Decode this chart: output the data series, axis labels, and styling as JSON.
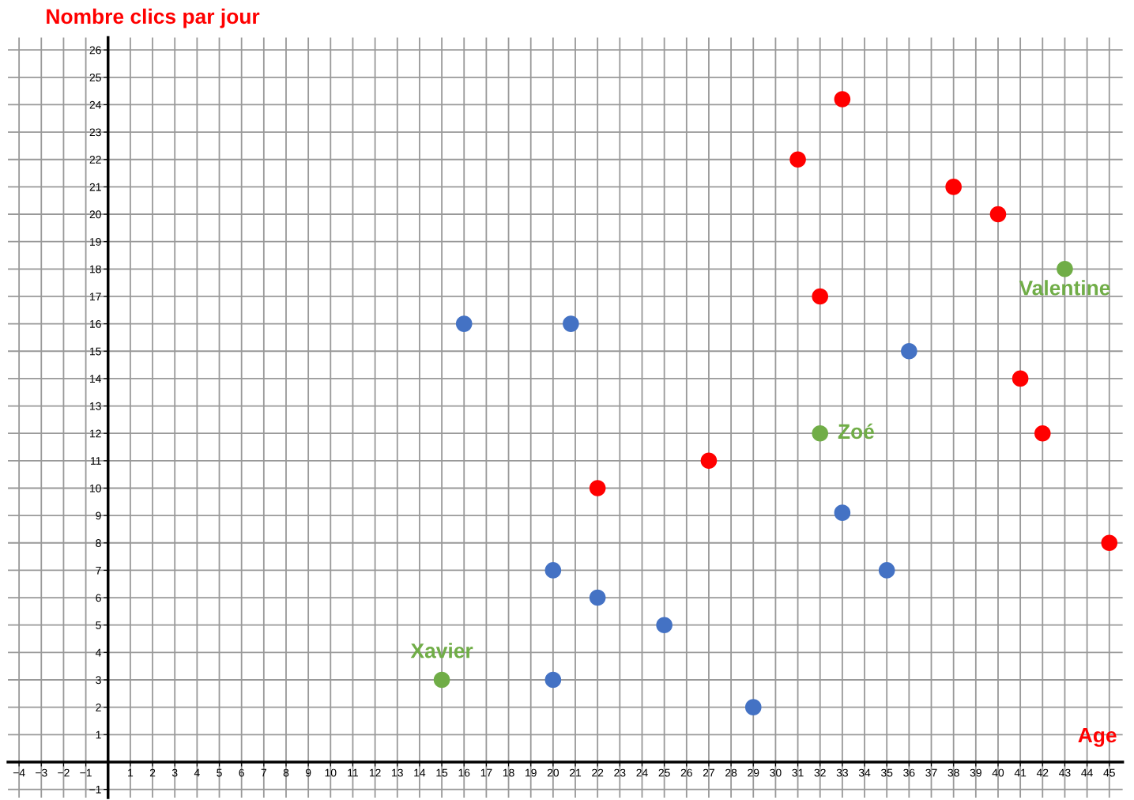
{
  "chart_data": {
    "type": "scatter",
    "xlabel": "Age",
    "ylabel": "Nombre clics par jour",
    "xlim": [
      -4.5,
      45.6
    ],
    "ylim": [
      -1.3,
      26.45
    ],
    "xticks": [
      {
        "value": -4,
        "label": "−4"
      },
      {
        "value": -3,
        "label": "−3"
      },
      {
        "value": -2,
        "label": "−2"
      },
      {
        "value": -1,
        "label": "−1"
      },
      1,
      2,
      3,
      4,
      5,
      6,
      7,
      8,
      9,
      10,
      11,
      12,
      13,
      14,
      15,
      16,
      17,
      18,
      19,
      20,
      21,
      22,
      23,
      24,
      25,
      26,
      27,
      28,
      29,
      30,
      31,
      32,
      33,
      34,
      35,
      36,
      37,
      38,
      39,
      40,
      41,
      42,
      43,
      44,
      45
    ],
    "yticks": [
      {
        "value": -1,
        "label": "−1"
      },
      1,
      2,
      3,
      4,
      5,
      6,
      7,
      8,
      9,
      10,
      11,
      12,
      13,
      14,
      15,
      16,
      17,
      18,
      19,
      20,
      21,
      22,
      23,
      24,
      25,
      26
    ],
    "grid": true,
    "marker": "circle",
    "series": [
      {
        "color": "#ff0000",
        "x": [
          22,
          27,
          31,
          33,
          32,
          38,
          40,
          41,
          42,
          45
        ],
        "values": [
          10,
          11,
          22,
          24.2,
          17,
          21,
          20,
          14,
          12,
          8
        ]
      },
      {
        "color": "#4472c4",
        "x": [
          16,
          20.8,
          20,
          22,
          25,
          20,
          29,
          33,
          35,
          36
        ],
        "values": [
          16,
          16,
          7,
          6,
          5,
          3,
          2,
          9.1,
          7,
          15
        ]
      },
      {
        "color": "#70ad47",
        "x": [
          15,
          32,
          43
        ],
        "values": [
          3,
          12,
          18
        ]
      }
    ],
    "annotations": [
      {
        "text": "Xavier",
        "x": 15,
        "y": 3
      },
      {
        "text": "Zoé",
        "x": 32,
        "y": 12
      },
      {
        "text": "Valentine",
        "x": 43,
        "y": 18
      }
    ]
  }
}
